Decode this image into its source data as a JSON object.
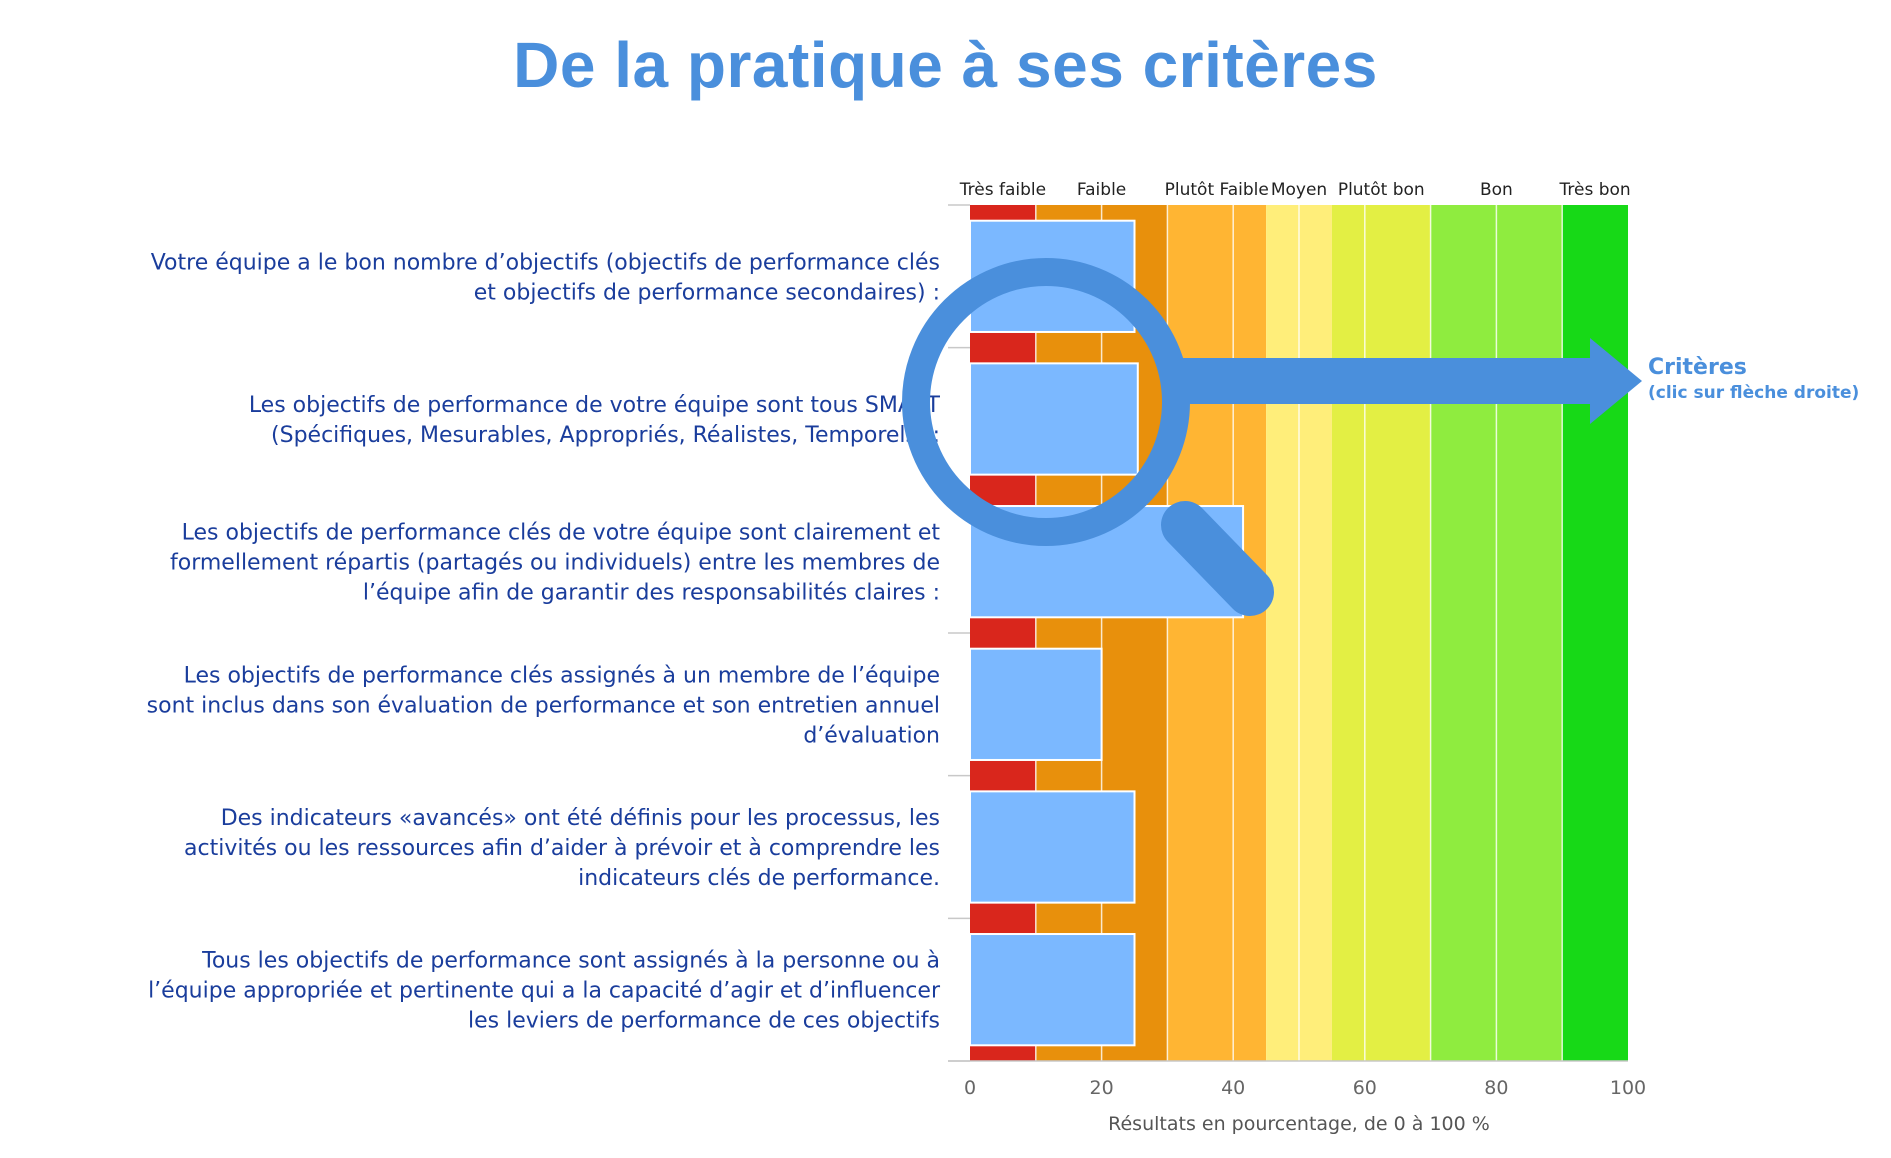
{
  "title": "De la pratique à ses critères",
  "chart_data": {
    "type": "bar",
    "orientation": "horizontal",
    "xlabel": "Résultats en pourcentage, de 0 à 100 %",
    "xlim": [
      0,
      100
    ],
    "xticks": [
      0,
      20,
      40,
      60,
      80,
      100
    ],
    "zones": [
      {
        "label": "Très faible",
        "from": 0,
        "to": 10,
        "color": "#d9261c"
      },
      {
        "label": "Faible",
        "from": 10,
        "to": 30,
        "color": "#e8900c"
      },
      {
        "label": "Plutôt Faible",
        "from": 30,
        "to": 45,
        "color": "#ffb533"
      },
      {
        "label": "Moyen",
        "from": 45,
        "to": 55,
        "color": "#ffee7a"
      },
      {
        "label": "Plutôt bon",
        "from": 55,
        "to": 70,
        "color": "#e3ef44"
      },
      {
        "label": "Bon",
        "from": 70,
        "to": 90,
        "color": "#8fec3f"
      },
      {
        "label": "Très bon",
        "from": 90,
        "to": 100,
        "color": "#17d917"
      }
    ],
    "categories": [
      "Votre équipe a le bon nombre d’objectifs (objectifs de performance clés\net objectifs de performance secondaires) :",
      "Les objectifs de performance de votre équipe sont tous SMART\n(Spécifiques, Mesurables, Appropriés, Réalistes, Temporels) :",
      "Les objectifs de performance clés de votre équipe sont clairement et\nformellement répartis (partagés ou individuels) entre les membres de\nl’équipe afin de garantir des responsabilités claires :",
      "Les objectifs de performance clés assignés à un membre de l’équipe\nsont inclus dans son évaluation de performance et son entretien annuel\nd’évaluation",
      "Des indicateurs «avancés» ont été définis pour les processus, les\nactivités ou les ressources afin d’aider à prévoir et à comprendre les\nindicateurs clés de performance.",
      "Tous les objectifs de performance sont assignés à la personne ou à\nl’équipe appropriée et pertinente qui a la capacité d’agir et d’influencer\nles leviers de performance de ces objectifs"
    ],
    "values": [
      25,
      25.5,
      41.5,
      20,
      25,
      25
    ],
    "bar_color": "#7bb8ff"
  },
  "callout": {
    "title": "Critères",
    "subtitle": "(clic sur flèche droite)",
    "icon": "magnifier-icon",
    "color": "#4a8fdc"
  }
}
